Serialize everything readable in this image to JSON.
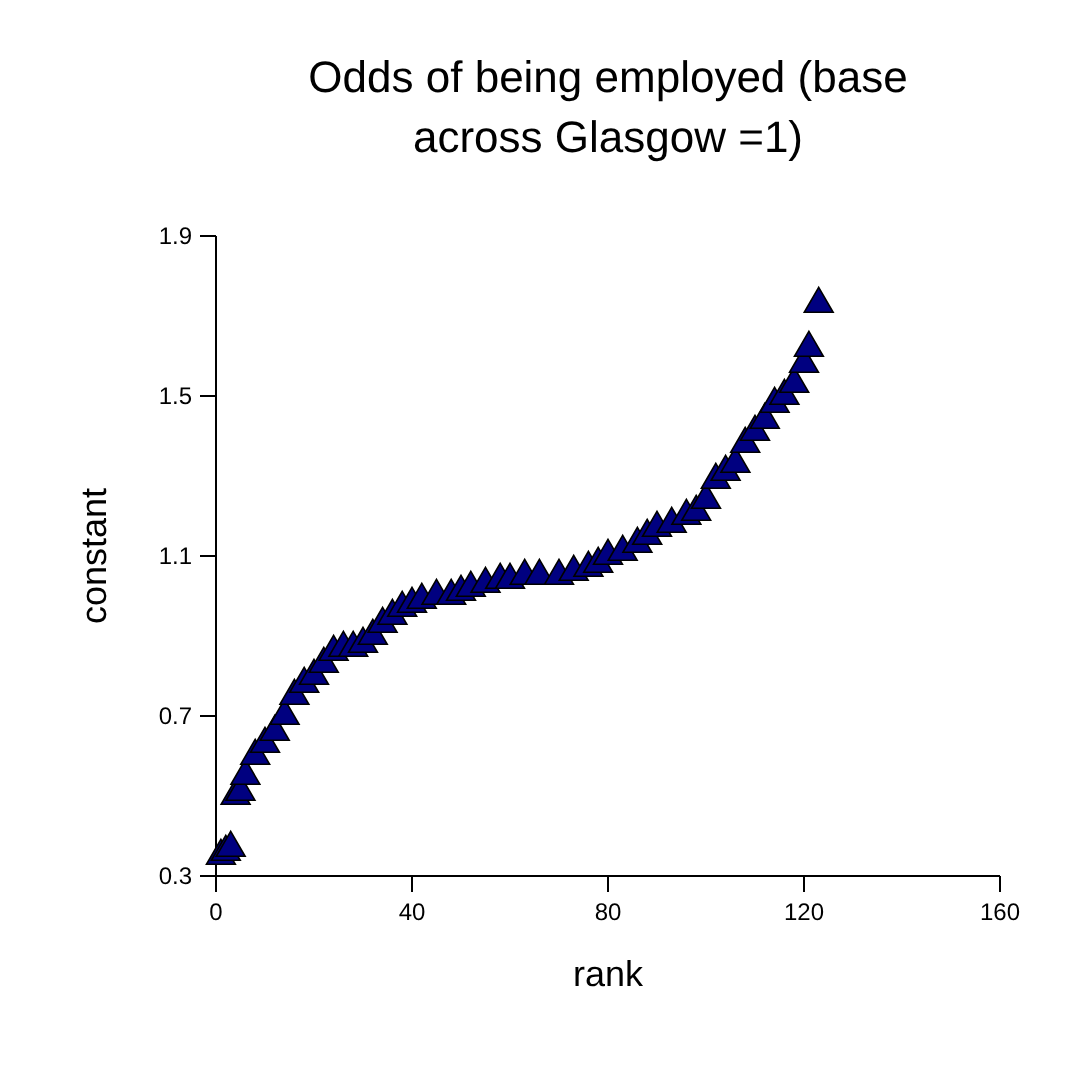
{
  "chart_data": {
    "type": "scatter",
    "title": "Odds of being employed (base across Glasgow =1)",
    "xlabel": "rank",
    "ylabel": "constant",
    "x": [
      1,
      2,
      3,
      4,
      5,
      6,
      8,
      10,
      12,
      14,
      16,
      18,
      20,
      22,
      24,
      26,
      28,
      30,
      32,
      34,
      36,
      38,
      40,
      42,
      45,
      48,
      50,
      52,
      55,
      58,
      60,
      63,
      66,
      70,
      73,
      76,
      78,
      80,
      83,
      86,
      88,
      90,
      93,
      96,
      98,
      100,
      102,
      104,
      106,
      108,
      110,
      112,
      114,
      116,
      118,
      120,
      121,
      123
    ],
    "values": [
      0.35,
      0.36,
      0.37,
      0.5,
      0.51,
      0.55,
      0.6,
      0.63,
      0.66,
      0.7,
      0.75,
      0.78,
      0.8,
      0.83,
      0.86,
      0.87,
      0.87,
      0.88,
      0.9,
      0.93,
      0.95,
      0.97,
      0.98,
      0.99,
      1.0,
      1.0,
      1.01,
      1.02,
      1.03,
      1.04,
      1.04,
      1.05,
      1.05,
      1.05,
      1.06,
      1.07,
      1.08,
      1.1,
      1.11,
      1.13,
      1.15,
      1.17,
      1.18,
      1.2,
      1.21,
      1.24,
      1.29,
      1.31,
      1.33,
      1.38,
      1.41,
      1.44,
      1.48,
      1.5,
      1.53,
      1.58,
      1.62,
      1.73
    ],
    "color": "#000080",
    "marker": "triangle",
    "xlim": [
      0,
      160
    ],
    "xticks": [
      0,
      40,
      80,
      120,
      160
    ],
    "ylim": [
      0.3,
      1.9
    ],
    "yticks": [
      0.3,
      0.7,
      1.1,
      1.5,
      1.9
    ],
    "grid": false
  }
}
